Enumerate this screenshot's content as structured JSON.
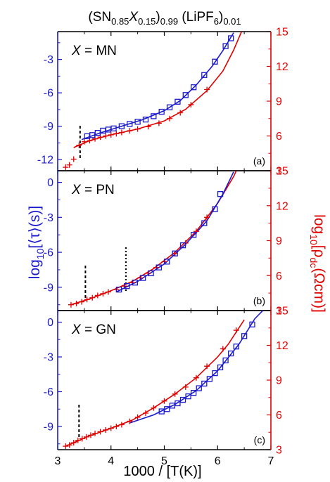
{
  "chart_data": {
    "type": "scatter",
    "title_parts": [
      "(SN",
      "0.85",
      "X",
      "0.15",
      ")",
      "0.99",
      " (LiPF",
      "6",
      ")",
      "0.01"
    ],
    "xlabel": "1000 / [T(K)]",
    "xlim": [
      3,
      7
    ],
    "x_ticks": [
      "3",
      "4",
      "5",
      "6",
      "7"
    ],
    "ylabel_left_parts": [
      "log",
      "10",
      "[⟨τ⟩(s)]"
    ],
    "ylabel_right_parts": [
      "log",
      "10",
      "[ρ",
      "dc",
      "(Ωcm)]"
    ],
    "colors": {
      "left": "#1a1acc",
      "right": "#e00000",
      "dashed": "#000000"
    },
    "panels": [
      {
        "id": "a",
        "label": "(a)",
        "x_label": "X",
        "x_label_value": " = MN",
        "ylim_left": [
          -13,
          -0.5
        ],
        "yticks_left": [
          "-12",
          "-9",
          "-6",
          "-3"
        ],
        "ylim_right": [
          3,
          15
        ],
        "yticks_right": [
          "3",
          "6",
          "9",
          "12",
          "15"
        ],
        "tau_points": [
          [
            3.55,
            -9.9
          ],
          [
            3.65,
            -9.8
          ],
          [
            3.75,
            -9.6
          ],
          [
            3.85,
            -9.4
          ],
          [
            3.95,
            -9.3
          ],
          [
            4.05,
            -9.2
          ],
          [
            4.2,
            -9.0
          ],
          [
            4.35,
            -8.8
          ],
          [
            4.5,
            -8.6
          ],
          [
            4.65,
            -8.4
          ],
          [
            4.8,
            -8.1
          ],
          [
            4.95,
            -7.7
          ],
          [
            5.1,
            -7.3
          ],
          [
            5.25,
            -6.8
          ],
          [
            5.4,
            -6.2
          ],
          [
            5.55,
            -5.5
          ],
          [
            5.75,
            -4.4
          ],
          [
            5.95,
            -3.2
          ],
          [
            6.15,
            -1.8
          ],
          [
            6.25,
            -1.1
          ]
        ],
        "tau_fit": [
          [
            3.45,
            -10.2
          ],
          [
            3.8,
            -9.6
          ],
          [
            4.2,
            -9.0
          ],
          [
            4.6,
            -8.4
          ],
          [
            5.0,
            -7.6
          ],
          [
            5.3,
            -6.7
          ],
          [
            5.6,
            -5.3
          ],
          [
            5.9,
            -3.6
          ],
          [
            6.1,
            -2.2
          ],
          [
            6.3,
            -0.6
          ]
        ],
        "rho_points": [
          [
            3.15,
            3.3
          ],
          [
            3.22,
            3.5
          ],
          [
            3.3,
            4.0
          ],
          [
            3.4,
            5.2
          ],
          [
            3.5,
            5.5
          ],
          [
            3.6,
            5.6
          ],
          [
            3.7,
            5.75
          ],
          [
            3.8,
            5.9
          ],
          [
            3.9,
            6.0
          ],
          [
            4.0,
            6.1
          ],
          [
            4.1,
            6.2
          ],
          [
            4.2,
            6.3
          ],
          [
            4.35,
            6.45
          ],
          [
            4.5,
            6.6
          ],
          [
            4.7,
            6.8
          ],
          [
            4.9,
            7.1
          ],
          [
            5.1,
            7.5
          ],
          [
            5.3,
            8.0
          ],
          [
            5.5,
            8.7
          ],
          [
            5.8,
            10.0
          ]
        ],
        "rho_fit": [
          [
            3.3,
            5.0
          ],
          [
            3.6,
            5.6
          ],
          [
            4.0,
            6.1
          ],
          [
            4.5,
            6.6
          ],
          [
            5.0,
            7.3
          ],
          [
            5.4,
            8.3
          ],
          [
            5.8,
            9.9
          ],
          [
            6.1,
            11.6
          ],
          [
            6.3,
            13.4
          ],
          [
            6.45,
            15.0
          ]
        ],
        "dashed_lines": [
          3.42
        ]
      },
      {
        "id": "b",
        "label": "(b)",
        "x_label": "X",
        "x_label_value": " = PN",
        "ylim_left": [
          -11,
          1
        ],
        "yticks_left": [
          "-9",
          "-6",
          "-3",
          "0"
        ],
        "ylim_right": [
          3,
          15
        ],
        "yticks_right": [
          "3",
          "6",
          "9",
          "12",
          "15"
        ],
        "tau_points": [
          [
            4.15,
            -9.2
          ],
          [
            4.3,
            -8.9
          ],
          [
            4.45,
            -8.6
          ],
          [
            4.6,
            -8.2
          ],
          [
            4.75,
            -7.8
          ],
          [
            4.9,
            -7.3
          ],
          [
            5.05,
            -6.8
          ],
          [
            5.2,
            -6.1
          ],
          [
            5.35,
            -5.4
          ],
          [
            5.55,
            -4.5
          ],
          [
            5.75,
            -3.5
          ],
          [
            5.95,
            -2.3
          ],
          [
            6.05,
            -1.0
          ]
        ],
        "tau_fit": [
          [
            4.1,
            -9.4
          ],
          [
            4.5,
            -8.5
          ],
          [
            5.0,
            -7.0
          ],
          [
            5.4,
            -5.3
          ],
          [
            5.8,
            -3.3
          ],
          [
            6.1,
            -1.0
          ],
          [
            6.3,
            0.9
          ]
        ],
        "rho_points": [
          [
            3.25,
            3.5
          ],
          [
            3.35,
            3.6
          ],
          [
            3.45,
            3.75
          ],
          [
            3.55,
            3.95
          ],
          [
            3.65,
            4.1
          ],
          [
            3.75,
            4.3
          ],
          [
            3.85,
            4.45
          ],
          [
            3.95,
            4.6
          ],
          [
            4.1,
            4.8
          ],
          [
            4.25,
            5.1
          ],
          [
            4.4,
            5.4
          ],
          [
            4.55,
            5.8
          ],
          [
            4.7,
            6.2
          ],
          [
            4.85,
            6.7
          ],
          [
            5.0,
            7.2
          ],
          [
            5.2,
            7.9
          ],
          [
            5.4,
            8.8
          ],
          [
            5.6,
            9.8
          ],
          [
            5.8,
            11.0
          ]
        ],
        "rho_fit": [
          [
            3.25,
            3.5
          ],
          [
            3.6,
            4.0
          ],
          [
            4.0,
            4.7
          ],
          [
            4.4,
            5.5
          ],
          [
            4.8,
            6.6
          ],
          [
            5.2,
            8.0
          ],
          [
            5.6,
            9.8
          ],
          [
            6.0,
            12.2
          ],
          [
            6.3,
            14.5
          ],
          [
            6.35,
            15.0
          ]
        ],
        "dashed_lines": [
          3.52
        ],
        "dotted_lines": [
          4.28
        ]
      },
      {
        "id": "c",
        "label": "(c)",
        "x_label": "X",
        "x_label_value": " = GN",
        "ylim_left": [
          -11,
          1
        ],
        "yticks_left": [
          "-9",
          "-6",
          "-3",
          "0"
        ],
        "ylim_right": [
          3,
          15
        ],
        "yticks_right": [
          "3",
          "6",
          "9",
          "12",
          "15"
        ],
        "tau_points": [
          [
            4.95,
            -7.7
          ],
          [
            5.05,
            -7.5
          ],
          [
            5.15,
            -7.2
          ],
          [
            5.25,
            -7.0
          ],
          [
            5.35,
            -6.7
          ],
          [
            5.45,
            -6.4
          ],
          [
            5.55,
            -6.1
          ],
          [
            5.65,
            -5.7
          ],
          [
            5.75,
            -5.3
          ],
          [
            5.85,
            -4.9
          ],
          [
            5.95,
            -4.4
          ],
          [
            6.05,
            -3.9
          ],
          [
            6.15,
            -3.3
          ],
          [
            6.25,
            -2.7
          ],
          [
            6.35,
            -2.1
          ],
          [
            6.5,
            -1.2
          ],
          [
            6.65,
            -0.2
          ]
        ],
        "tau_fit": [
          [
            4.35,
            -8.7
          ],
          [
            4.8,
            -8.0
          ],
          [
            5.2,
            -7.1
          ],
          [
            5.6,
            -5.9
          ],
          [
            6.0,
            -4.2
          ],
          [
            6.4,
            -1.9
          ],
          [
            6.7,
            0.3
          ],
          [
            6.85,
            1.0
          ]
        ],
        "rho_points": [
          [
            3.15,
            3.3
          ],
          [
            3.22,
            3.4
          ],
          [
            3.3,
            3.6
          ],
          [
            3.38,
            3.8
          ],
          [
            3.46,
            3.95
          ],
          [
            3.54,
            4.1
          ],
          [
            3.62,
            4.25
          ],
          [
            3.7,
            4.4
          ],
          [
            3.8,
            4.55
          ],
          [
            3.9,
            4.7
          ],
          [
            4.0,
            4.85
          ],
          [
            4.1,
            5.0
          ],
          [
            4.2,
            5.15
          ],
          [
            4.35,
            5.45
          ],
          [
            4.5,
            5.8
          ],
          [
            4.65,
            6.15
          ],
          [
            4.8,
            6.6
          ],
          [
            5.0,
            7.2
          ],
          [
            5.2,
            7.8
          ],
          [
            5.4,
            8.4
          ],
          [
            5.6,
            9.2
          ],
          [
            5.8,
            10.2
          ],
          [
            6.1,
            11.7
          ],
          [
            6.35,
            13.3
          ]
        ],
        "rho_fit": [
          [
            3.15,
            3.3
          ],
          [
            3.6,
            4.2
          ],
          [
            4.0,
            4.85
          ],
          [
            4.4,
            5.55
          ],
          [
            4.8,
            6.6
          ],
          [
            5.2,
            7.8
          ],
          [
            5.6,
            9.2
          ],
          [
            6.0,
            11.0
          ],
          [
            6.2,
            12.1
          ],
          [
            6.5,
            14.2
          ]
        ],
        "dashed_lines": [
          3.4
        ]
      }
    ]
  }
}
